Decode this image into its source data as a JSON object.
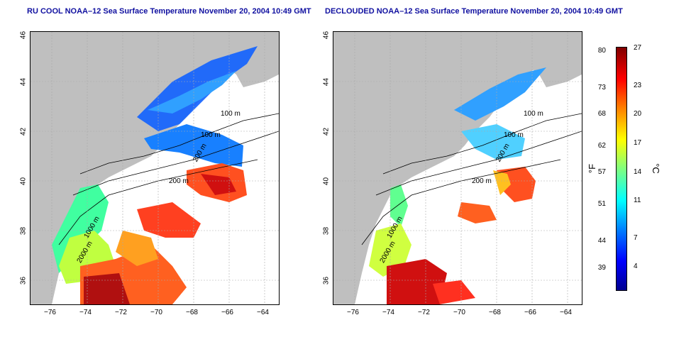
{
  "maps": {
    "left": {
      "title": "RU COOL NOAA–12 Sea Surface Temperature November 20, 2004 10:49 GMT",
      "contours": [
        "100 m",
        "100 m",
        "200 m",
        "1000 m",
        "2000 m",
        "200 m"
      ]
    },
    "right": {
      "title": "DECLOUDED NOAA–12 Sea Surface Temperature November 20, 2004 10:49 GMT",
      "contours": [
        "100 m",
        "100 m",
        "200 m",
        "1000 m",
        "2000 m",
        "200 m"
      ]
    },
    "lat_ticks": [
      "46",
      "44",
      "42",
      "40",
      "38",
      "36"
    ],
    "lon_ticks": [
      "−76",
      "−74",
      "−72",
      "−70",
      "−68",
      "−66",
      "−64"
    ]
  },
  "colorbar": {
    "f_label": "°F",
    "c_label": "°C",
    "f_ticks": [
      "80",
      "73",
      "68",
      "62",
      "57",
      "51",
      "44",
      "39"
    ],
    "c_ticks": [
      "27",
      "23",
      "20",
      "17",
      "14",
      "11",
      "7",
      "4"
    ],
    "colors": [
      "#00008f",
      "#0000ff",
      "#0080ff",
      "#00ffff",
      "#7fff7f",
      "#ffff00",
      "#ff8000",
      "#ff0000",
      "#800000"
    ]
  }
}
